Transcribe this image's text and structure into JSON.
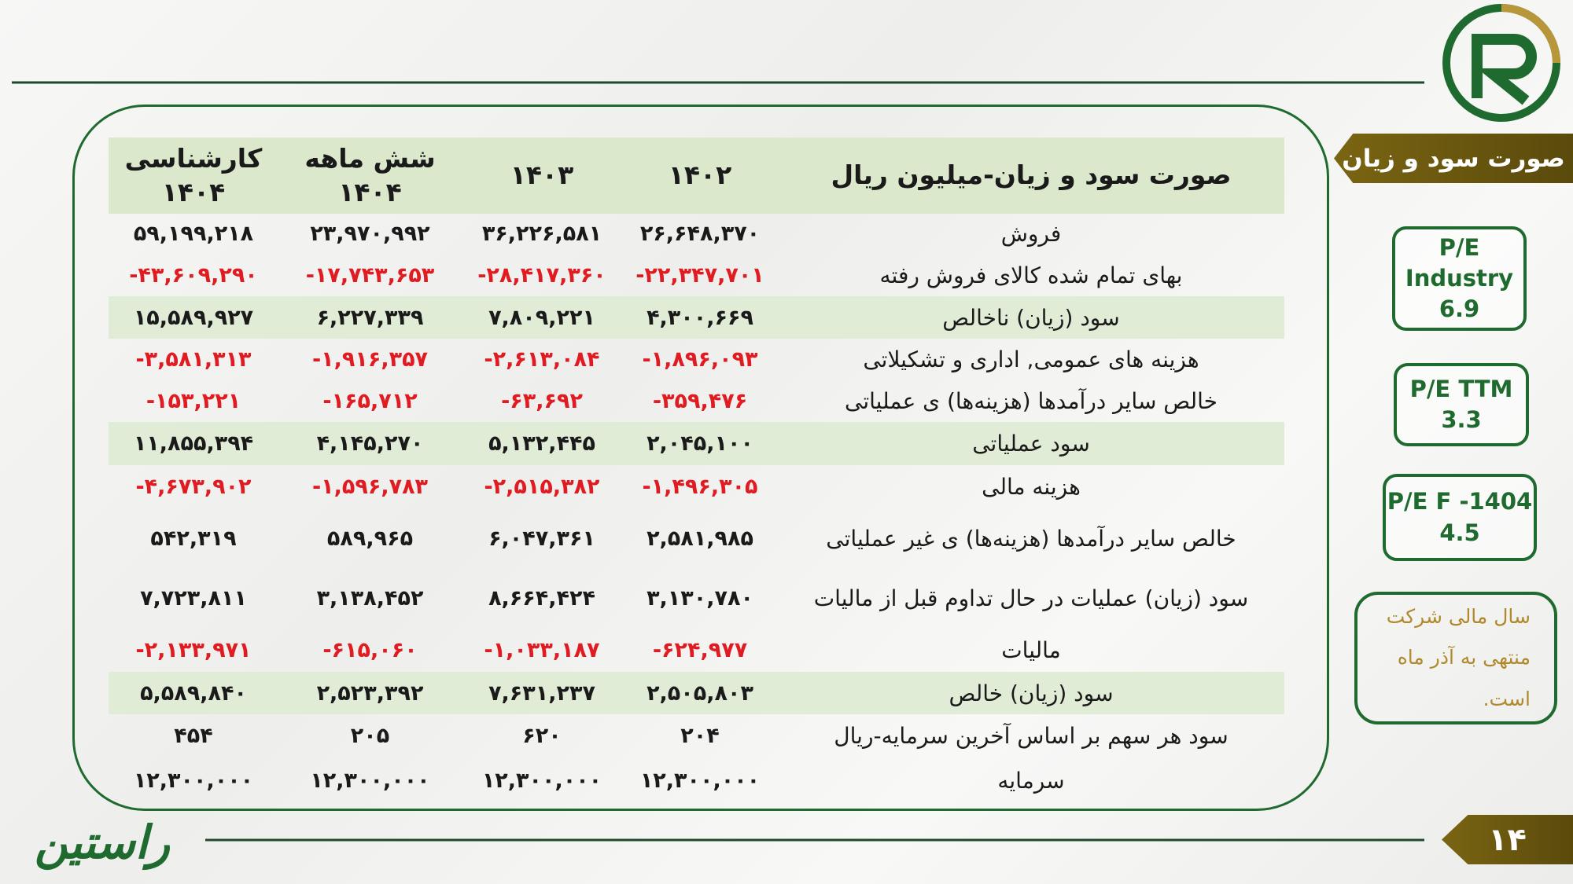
{
  "header": {
    "title": "صورت سود و زیان"
  },
  "table": {
    "columns": [
      "صورت سود و زیان-میلیون ریال",
      "۱۴۰۲",
      "۱۴۰۳",
      "شش ماهه ۱۴۰۴",
      "کارشناسی ۱۴۰۴"
    ],
    "rows": [
      {
        "label": "فروش",
        "values": [
          "۲۶,۶۴۸,۳۷۰",
          "۳۶,۲۲۶,۵۸۱",
          "۲۳,۹۷۰,۹۹۲",
          "۵۹,۱۹۹,۲۱۸"
        ]
      },
      {
        "label": "بهای تمام شده کالای فروش رفته",
        "values": [
          "-۲۲,۳۴۷,۷۰۱",
          "-۲۸,۴۱۷,۳۶۰",
          "-۱۷,۷۴۳,۶۵۳",
          "-۴۳,۶۰۹,۲۹۰"
        ]
      },
      {
        "label": "سود (زیان) ناخالص",
        "values": [
          "۴,۳۰۰,۶۶۹",
          "۷,۸۰۹,۲۲۱",
          "۶,۲۲۷,۳۳۹",
          "۱۵,۵۸۹,۹۲۷"
        ]
      },
      {
        "label": "هزینه های عمومی, اداری و تشکیلاتی",
        "values": [
          "-۱,۸۹۶,۰۹۳",
          "-۲,۶۱۳,۰۸۴",
          "-۱,۹۱۶,۳۵۷",
          "-۳,۵۸۱,۳۱۳"
        ]
      },
      {
        "label": "خالص سایر درآمدها (هزینه‌ها) ی عملیاتی",
        "values": [
          "-۳۵۹,۴۷۶",
          "-۶۳,۶۹۲",
          "-۱۶۵,۷۱۲",
          "-۱۵۳,۲۲۱"
        ]
      },
      {
        "label": "سود عملیاتی",
        "values": [
          "۲,۰۴۵,۱۰۰",
          "۵,۱۳۲,۴۴۵",
          "۴,۱۴۵,۲۷۰",
          "۱۱,۸۵۵,۳۹۴"
        ]
      },
      {
        "label": "هزینه مالی",
        "values": [
          "-۱,۴۹۶,۳۰۵",
          "-۲,۵۱۵,۳۸۲",
          "-۱,۵۹۶,۷۸۳",
          "-۴,۶۷۳,۹۰۲"
        ]
      },
      {
        "label": "خالص سایر درآمدها (هزینه‌ها) ی غیر عملیاتی",
        "values": [
          "۲,۵۸۱,۹۸۵",
          "۶,۰۴۷,۳۶۱",
          "۵۸۹,۹۶۵",
          "۵۴۲,۳۱۹"
        ]
      },
      {
        "label": "سود (زیان) عملیات در حال تداوم قبل از مالیات",
        "values": [
          "۳,۱۳۰,۷۸۰",
          "۸,۶۶۴,۴۲۴",
          "۳,۱۳۸,۴۵۲",
          "۷,۷۲۳,۸۱۱"
        ]
      },
      {
        "label": "مالیات",
        "values": [
          "-۶۲۴,۹۷۷",
          "-۱,۰۳۳,۱۸۷",
          "-۶۱۵,۰۶۰",
          "-۲,۱۳۳,۹۷۱"
        ]
      },
      {
        "label": "سود (زیان) خالص",
        "values": [
          "۲,۵۰۵,۸۰۳",
          "۷,۶۳۱,۲۳۷",
          "۲,۵۲۳,۳۹۲",
          "۵,۵۸۹,۸۴۰"
        ]
      },
      {
        "label": "سود هر سهم بر اساس آخرین سرمایه-ریال",
        "values": [
          "۲۰۴",
          "۶۲۰",
          "۲۰۵",
          "۴۵۴"
        ]
      },
      {
        "label": "سرمایه",
        "values": [
          "۱۲,۳۰۰,۰۰۰",
          "۱۲,۳۰۰,۰۰۰",
          "۱۲,۳۰۰,۰۰۰",
          "۱۲,۳۰۰,۰۰۰"
        ]
      }
    ]
  },
  "sidebar": {
    "metrics": [
      {
        "label": "P/E Industry",
        "value": "6.9"
      },
      {
        "label": "P/E TTM",
        "value": "3.3"
      },
      {
        "label": "P/E F -1404",
        "value": "4.5"
      }
    ],
    "note": "سال مالی شرکت منتهی به آذر ماه است."
  },
  "footer": {
    "page_number": "۱۴",
    "brand": "راستین"
  }
}
